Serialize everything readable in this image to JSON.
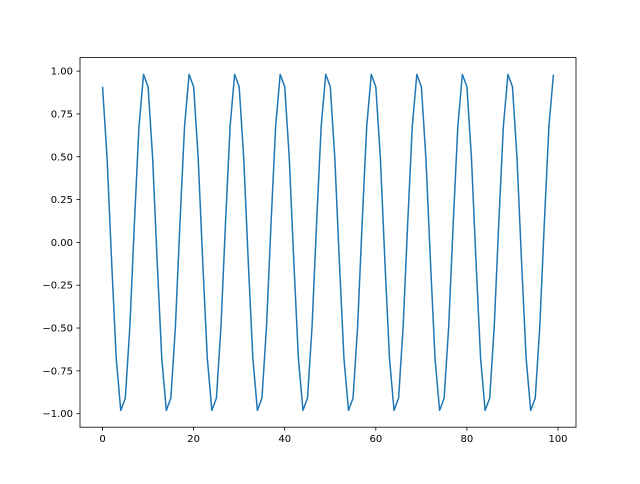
{
  "chart_data": {
    "type": "line",
    "title": "",
    "xlabel": "",
    "ylabel": "",
    "xlim": [
      -4.95,
      103.95
    ],
    "ylim": [
      -1.079,
      1.079
    ],
    "grid": false,
    "x_ticks": [
      0,
      20,
      40,
      60,
      80,
      100
    ],
    "x_tick_labels": [
      "0",
      "20",
      "40",
      "60",
      "80",
      "100"
    ],
    "y_ticks": [
      -1.0,
      -0.75,
      -0.5,
      -0.25,
      0.0,
      0.25,
      0.5,
      0.75,
      1.0
    ],
    "y_tick_labels": [
      "−1.00",
      "−0.75",
      "−0.50",
      "−0.25",
      "0.00",
      "0.25",
      "0.50",
      "0.75",
      "1.00"
    ],
    "series": [
      {
        "color": "#1f77b4",
        "x_start": 0,
        "x_step": 1,
        "values": [
          0.909,
          0.491,
          -0.115,
          -0.676,
          -0.981,
          -0.909,
          -0.491,
          0.115,
          0.676,
          0.981,
          0.909,
          0.491,
          -0.115,
          -0.676,
          -0.981,
          -0.909,
          -0.491,
          0.115,
          0.676,
          0.981,
          0.909,
          0.491,
          -0.115,
          -0.676,
          -0.981,
          -0.909,
          -0.491,
          0.115,
          0.676,
          0.981,
          0.909,
          0.491,
          -0.115,
          -0.676,
          -0.981,
          -0.909,
          -0.491,
          0.115,
          0.676,
          0.981,
          0.909,
          0.491,
          -0.115,
          -0.676,
          -0.981,
          -0.909,
          -0.491,
          0.115,
          0.676,
          0.981,
          0.909,
          0.491,
          -0.115,
          -0.676,
          -0.981,
          -0.909,
          -0.491,
          0.115,
          0.676,
          0.981,
          0.909,
          0.491,
          -0.115,
          -0.676,
          -0.981,
          -0.909,
          -0.491,
          0.115,
          0.676,
          0.981,
          0.909,
          0.491,
          -0.115,
          -0.676,
          -0.981,
          -0.909,
          -0.491,
          0.115,
          0.676,
          0.981,
          0.909,
          0.491,
          -0.115,
          -0.676,
          -0.981,
          -0.909,
          -0.491,
          0.115,
          0.676,
          0.981,
          0.909,
          0.491,
          -0.115,
          -0.676,
          -0.981,
          -0.909,
          -0.491,
          0.115,
          0.676,
          0.981
        ]
      }
    ]
  }
}
